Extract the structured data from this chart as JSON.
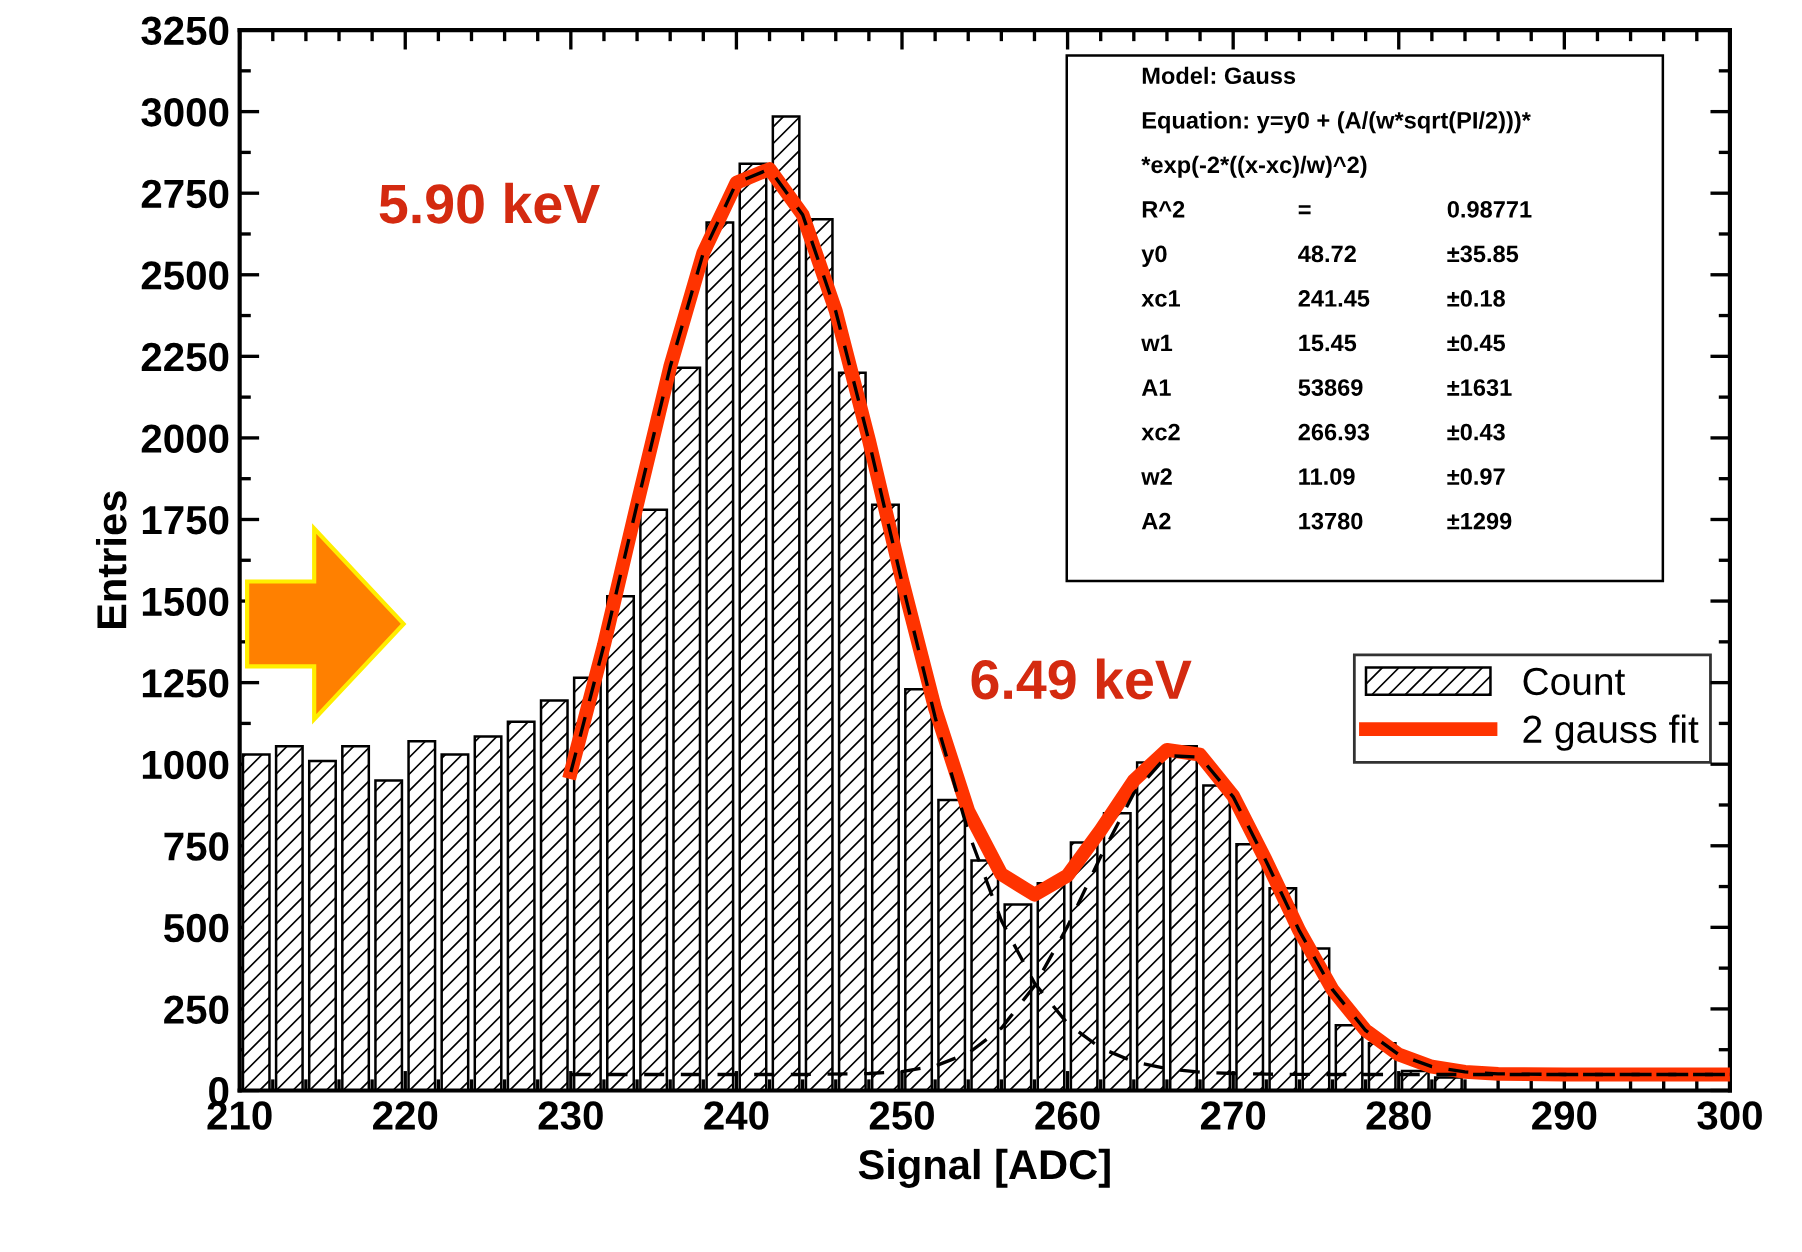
{
  "chart_data": {
    "type": "histogram",
    "xlabel": "Signal [ADC]",
    "ylabel": "Entries",
    "series": [
      {
        "name": "Count",
        "color": "#000000",
        "bins": [
          210,
          212,
          214,
          216,
          218,
          220,
          222,
          224,
          226,
          228,
          230,
          232,
          234,
          236,
          238,
          240,
          242,
          244,
          246,
          248,
          250,
          252,
          254,
          256,
          258,
          260,
          262,
          264,
          266,
          268,
          270,
          272,
          274,
          276,
          278,
          280,
          282,
          284
        ],
        "values": [
          1030,
          1055,
          1010,
          1055,
          950,
          1070,
          1030,
          1085,
          1130,
          1195,
          1265,
          1515,
          1780,
          2215,
          2660,
          2840,
          2985,
          2670,
          2200,
          1795,
          1230,
          890,
          705,
          570,
          635,
          760,
          850,
          1005,
          1055,
          935,
          755,
          620,
          435,
          200,
          145,
          60,
          40
        ]
      },
      {
        "type": "line",
        "name": "2 gauss fit",
        "color": "#ff3300",
        "line_style": "solid",
        "x": [
          230,
          232,
          234,
          236,
          238,
          240,
          242,
          244,
          246,
          248,
          250,
          252,
          254,
          256,
          258,
          260,
          262,
          264,
          266,
          268,
          270,
          272,
          274,
          276,
          278,
          280,
          282,
          284,
          286,
          290,
          295,
          300
        ],
        "values": [
          976,
          1365,
          1796,
          2218,
          2567,
          2782,
          2824,
          2684,
          2389,
          1994,
          1566,
          1170,
          857,
          663,
          600,
          659,
          798,
          950,
          1044,
          1029,
          903,
          703,
          489,
          309,
          184,
          110,
          73,
          57,
          51,
          49,
          49,
          49
        ]
      },
      {
        "type": "line",
        "color": "#000000",
        "line_style": "dashed",
        "x": [
          230,
          232,
          234,
          236,
          238,
          240,
          242,
          244,
          246,
          248,
          250,
          252,
          254,
          256,
          258,
          260,
          262,
          264,
          266,
          268,
          270,
          272,
          276,
          280,
          290,
          300
        ],
        "values": [
          976,
          1365,
          1796,
          2218,
          2567,
          2782,
          2824,
          2684,
          2388,
          1991,
          1557,
          1144,
          792,
          521,
          329,
          205,
          130,
          88,
          67,
          56,
          52,
          50,
          49,
          49,
          49,
          49
        ]
      },
      {
        "type": "line",
        "color": "#000000",
        "line_style": "dashed",
        "x": [
          230,
          240,
          244,
          248,
          250,
          252,
          254,
          256,
          258,
          260,
          262,
          264,
          266,
          268,
          270,
          272,
          274,
          276,
          278,
          280,
          282,
          284,
          286,
          290,
          300
        ],
        "values": [
          49,
          49,
          49,
          52,
          58,
          75,
          114,
          191,
          320,
          503,
          717,
          911,
          1026,
          1022,
          900,
          702,
          489,
          309,
          184,
          110,
          73,
          57,
          51,
          49,
          49
        ]
      }
    ],
    "xlim": [
      210,
      300
    ],
    "xticks": [
      210,
      220,
      230,
      240,
      250,
      260,
      270,
      280,
      290,
      300
    ],
    "ylim": [
      0,
      3250
    ],
    "yticks": [
      0,
      250,
      500,
      750,
      1000,
      1250,
      1500,
      1750,
      2000,
      2250,
      2500,
      2750,
      3000,
      3250
    ],
    "grid": false,
    "legend": "right",
    "annotations": [
      {
        "text": "5.90 keV",
        "x": 241,
        "y": 2830
      },
      {
        "text": "6.49 keV",
        "x": 267,
        "y": 1040
      },
      "Model: Gauss",
      "Equation: y=y0 + (A/(w*sqrt(PI/2)))*",
      "*exp(-2*((x-xc)/w)^2)",
      "R^2  =  0.98771",
      "y0  48.72  ±35.85",
      "xc1  241.45  ±0.18",
      "w1  15.45  ±0.45",
      "A1  53869  ±1631",
      "xc2  266.93  ±0.43",
      "w2  11.09  ±0.97",
      "A2  13780  ±1299"
    ]
  }
}
